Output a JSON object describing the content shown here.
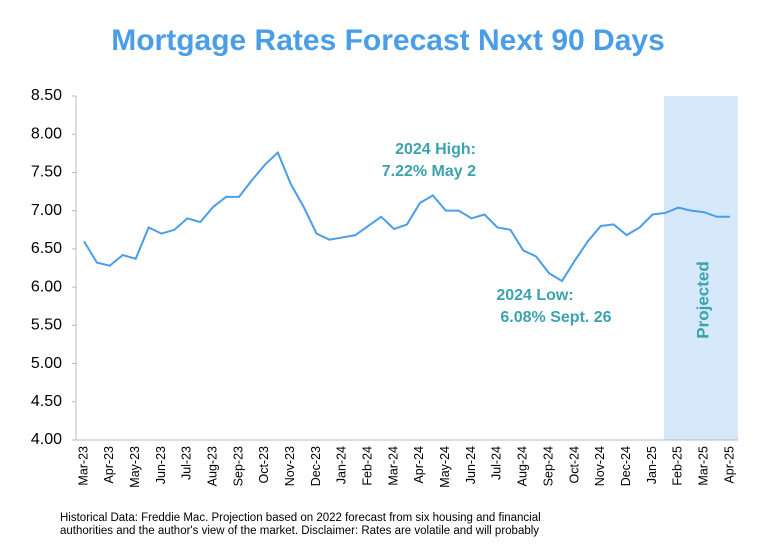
{
  "chart_data": {
    "type": "line",
    "title": "Mortgage Rates Forecast Next 90 Days",
    "categories": [
      "Mar-23",
      null,
      "Apr-23",
      null,
      "May-23",
      null,
      "Jun-23",
      null,
      "Jul-23",
      null,
      "Aug-23",
      null,
      "Sep-23",
      null,
      "Oct-23",
      null,
      "Nov-23",
      null,
      "Dec-23",
      null,
      "Jan-24",
      null,
      "Feb-24",
      null,
      "Mar-24",
      null,
      "Apr-24",
      null,
      "May-24",
      null,
      "Jun-24",
      null,
      "Jul-24",
      null,
      "Aug-24",
      null,
      "Sep-24",
      null,
      "Oct-24",
      null,
      "Nov-24",
      null,
      "Dec-24",
      null,
      "Jan-25",
      null,
      "Feb-25",
      null,
      "Mar-25",
      null,
      "Apr-25"
    ],
    "series": [
      {
        "name": "Mortgage rate",
        "color": "#4a9ee8",
        "values": [
          6.6,
          6.32,
          6.28,
          6.42,
          6.37,
          6.78,
          6.7,
          6.75,
          6.9,
          6.85,
          7.05,
          7.18,
          7.18,
          7.4,
          7.6,
          7.76,
          7.35,
          7.05,
          6.7,
          6.62,
          6.65,
          6.68,
          6.8,
          6.92,
          6.76,
          6.82,
          7.1,
          7.2,
          7.0,
          7.0,
          6.9,
          6.95,
          6.78,
          6.75,
          6.48,
          6.4,
          6.18,
          6.08,
          6.35,
          6.6,
          6.8,
          6.82,
          6.68,
          6.78,
          6.95,
          6.97,
          7.04,
          7.0,
          6.98,
          6.92,
          6.92
        ]
      }
    ],
    "ylim": [
      4.0,
      8.5
    ],
    "yticks": [
      {
        "value": 4.0,
        "label": "4.00"
      },
      {
        "value": 4.5,
        "label": "4.50"
      },
      {
        "value": 5.0,
        "label": "5.00"
      },
      {
        "value": 5.5,
        "label": "5.50"
      },
      {
        "value": 6.0,
        "label": "6.00"
      },
      {
        "value": 6.5,
        "label": "6.50"
      },
      {
        "value": 7.0,
        "label": "7.00"
      },
      {
        "value": 7.5,
        "label": "7.50"
      },
      {
        "value": 8.0,
        "label": "8.00"
      },
      {
        "value": 8.5,
        "label": "8.50"
      }
    ],
    "projected_label": "Projected",
    "annotations": [
      [
        "2024 High:",
        "7.22% May 2"
      ],
      [
        "2024 Low:",
        "6.08% Sept. 26"
      ]
    ],
    "footnote": [
      "Historical Data: Freddie Mac. Projection based on 2022 forecast from six housing and financial",
      "authorities and the author's view of the market. Disclaimer: Rates are volatile and will probably"
    ]
  }
}
